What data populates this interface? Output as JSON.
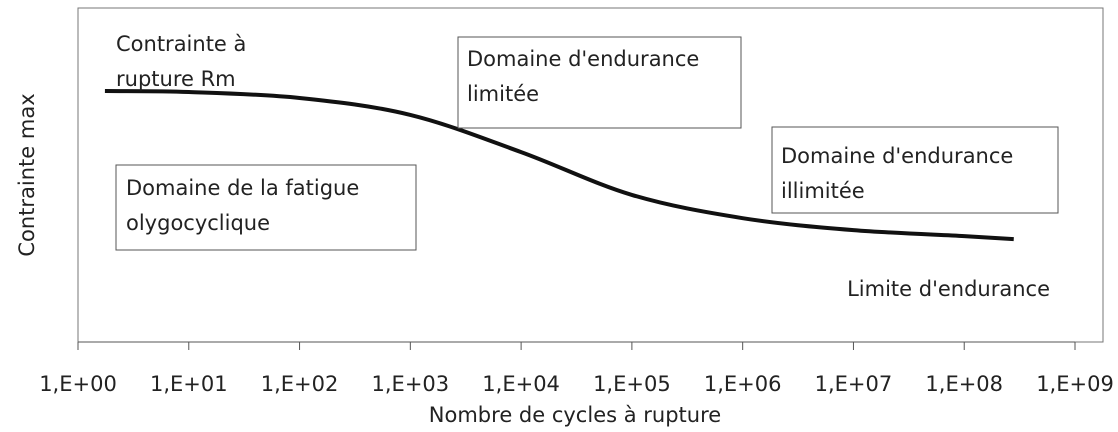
{
  "chart_data": {
    "type": "line",
    "xlabel": "Nombre de cycles à rupture",
    "ylabel": "Contrainte max",
    "xscale": "log",
    "xlim": [
      1,
      1000000000
    ],
    "xticks": [
      {
        "value": 1,
        "label": "1,E+00"
      },
      {
        "value": 10,
        "label": "1,E+01"
      },
      {
        "value": 100,
        "label": "1,E+02"
      },
      {
        "value": 1000,
        "label": "1,E+03"
      },
      {
        "value": 10000,
        "label": "1,E+04"
      },
      {
        "value": 100000,
        "label": "1,E+05"
      },
      {
        "value": 1000000,
        "label": "1,E+06"
      },
      {
        "value": 10000000,
        "label": "1,E+07"
      },
      {
        "value": 100000000,
        "label": "1,E+08"
      },
      {
        "value": 1000000000,
        "label": "1,E+09"
      }
    ],
    "ylim": [
      0,
      100
    ],
    "x": [
      1.75,
      10,
      100,
      1000,
      10000,
      100000,
      1000000,
      10000000,
      100000000,
      280000000
    ],
    "series": [
      {
        "color": "#111111",
        "values": [
          75.6,
          75.3,
          73.5,
          68.4,
          57.2,
          44.3,
          37.3,
          33.7,
          31.9,
          31.0
        ]
      }
    ],
    "annotations": [
      {
        "lines": [
          "Contrainte à",
          "rupture Rm"
        ],
        "boxed": false
      },
      {
        "lines": [
          "Domaine d'endurance",
          "limitée"
        ],
        "boxed": true
      },
      {
        "lines": [
          "Domaine de la fatigue",
          "olygocyclique"
        ],
        "boxed": true
      },
      {
        "lines": [
          "Domaine d'endurance",
          "illimitée"
        ],
        "boxed": true
      },
      {
        "lines": [
          "Limite d'endurance"
        ],
        "boxed": false
      }
    ]
  }
}
